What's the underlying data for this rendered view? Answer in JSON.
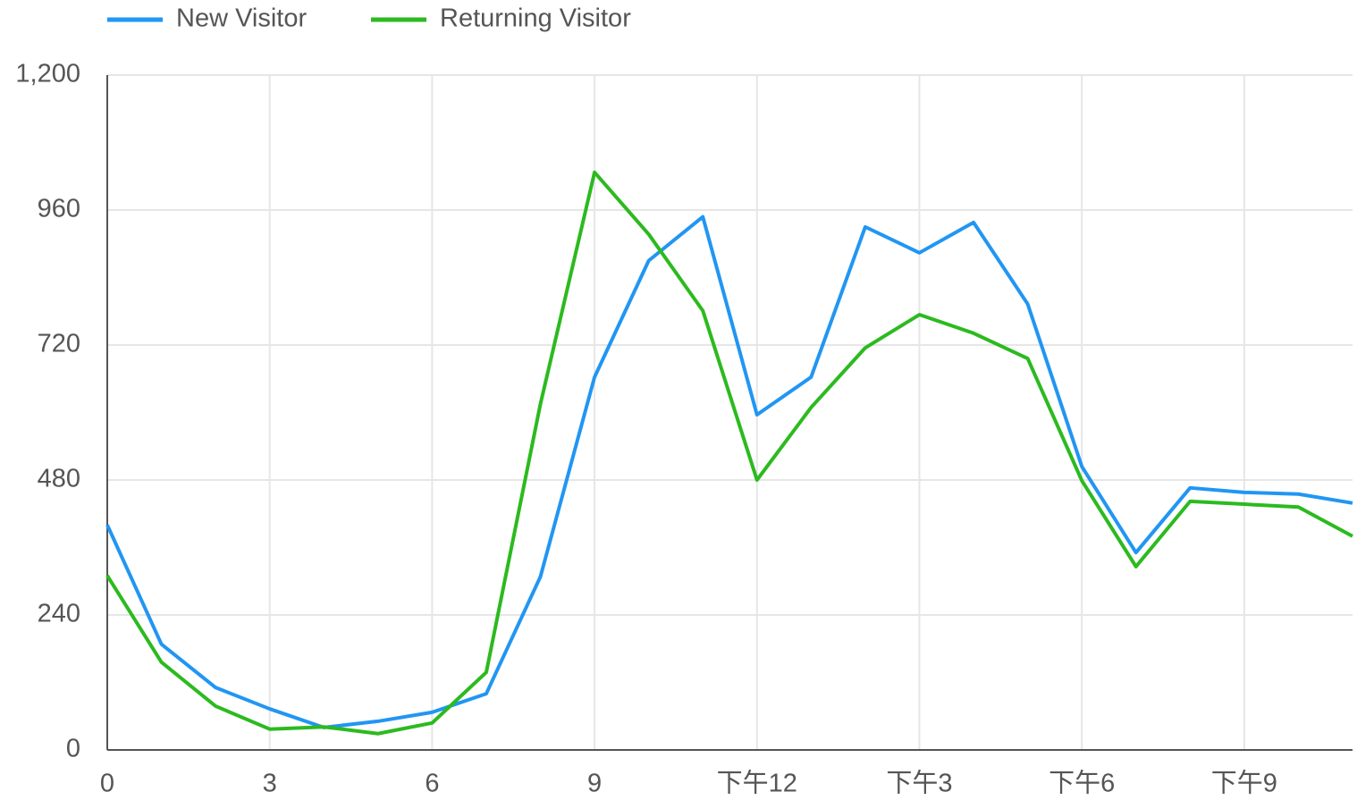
{
  "chart_data": {
    "type": "line",
    "x": [
      0,
      1,
      2,
      3,
      4,
      5,
      6,
      7,
      8,
      9,
      10,
      11,
      12,
      13,
      14,
      15,
      16,
      17,
      18,
      19,
      20,
      21,
      22,
      23
    ],
    "xlim": [
      0,
      23
    ],
    "xticks": [
      0,
      3,
      6,
      9,
      {
        "value": 12,
        "label": "下午12"
      },
      {
        "value": 15,
        "label": "下午3"
      },
      {
        "value": 18,
        "label": "下午6"
      },
      {
        "value": 21,
        "label": "下午9"
      }
    ],
    "ylim": [
      0,
      1200
    ],
    "yticks": [
      0,
      240,
      480,
      720,
      960,
      {
        "value": 1200,
        "label": "1,200"
      }
    ],
    "grid": true,
    "legend": "top-left",
    "series": [
      {
        "name": "New Visitor",
        "color": "#2196f3",
        "values": [
          400,
          188,
          111,
          73,
          40,
          51,
          67,
          100,
          308,
          663,
          870,
          948,
          596,
          663,
          930,
          884,
          938,
          793,
          504,
          351,
          466,
          458,
          455,
          439
        ]
      },
      {
        "name": "Returning Visitor",
        "color": "#2cba1f",
        "values": [
          310,
          156,
          78,
          37,
          41,
          29,
          48,
          138,
          615,
          1027,
          917,
          781,
          480,
          609,
          715,
          774,
          741,
          696,
          479,
          326,
          442,
          437,
          432,
          380
        ]
      }
    ]
  }
}
